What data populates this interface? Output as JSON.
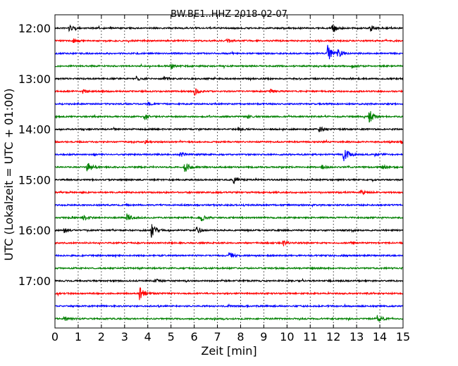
{
  "chart_data": {
    "type": "line",
    "title": "BW.BE1..HHZ 2018-02-07",
    "xlabel": "Zeit  [min]",
    "ylabel": "UTC (Lokalzeit = UTC + 01:00)",
    "xlim": [
      0,
      15
    ],
    "x_ticks": [
      0,
      1,
      2,
      3,
      4,
      5,
      6,
      7,
      8,
      9,
      10,
      11,
      12,
      13,
      14,
      15
    ],
    "y_tick_labels": [
      "12:00",
      "13:00",
      "14:00",
      "15:00",
      "16:00",
      "17:00"
    ],
    "grid": "vertical dotted",
    "trace_interval_min": 15,
    "color_cycle": [
      "#000000",
      "#ff0000",
      "#0000ff",
      "#008000"
    ],
    "series": [
      {
        "start": "12:00",
        "color": "#000000",
        "events": [
          {
            "t": 0.6,
            "a": 0.5
          },
          {
            "t": 11.95,
            "a": 0.9
          },
          {
            "t": 13.6,
            "a": 0.5
          }
        ]
      },
      {
        "start": "12:15",
        "color": "#ff0000",
        "events": [
          {
            "t": 0.8,
            "a": 0.3
          },
          {
            "t": 7.4,
            "a": 0.3
          }
        ]
      },
      {
        "start": "12:30",
        "color": "#0000ff",
        "events": [
          {
            "t": 11.75,
            "a": 1.4
          },
          {
            "t": 12.2,
            "a": 0.6
          }
        ]
      },
      {
        "start": "12:45",
        "color": "#008000",
        "events": [
          {
            "t": 5.0,
            "a": 0.5
          },
          {
            "t": 12.8,
            "a": 0.3
          }
        ]
      },
      {
        "start": "13:00",
        "color": "#000000",
        "events": [
          {
            "t": 3.5,
            "a": 0.4
          },
          {
            "t": 4.7,
            "a": 0.3
          }
        ]
      },
      {
        "start": "13:15",
        "color": "#ff0000",
        "events": [
          {
            "t": 1.2,
            "a": 0.3
          },
          {
            "t": 6.0,
            "a": 0.6
          },
          {
            "t": 9.3,
            "a": 0.3
          }
        ]
      },
      {
        "start": "13:30",
        "color": "#0000ff",
        "events": [
          {
            "t": 4.0,
            "a": 0.3
          }
        ]
      },
      {
        "start": "13:45",
        "color": "#008000",
        "events": [
          {
            "t": 3.85,
            "a": 0.5
          },
          {
            "t": 13.55,
            "a": 1.3
          },
          {
            "t": 8.3,
            "a": 0.3
          }
        ]
      },
      {
        "start": "14:00",
        "color": "#000000",
        "events": [
          {
            "t": 7.9,
            "a": 0.3
          },
          {
            "t": 11.4,
            "a": 0.5
          }
        ]
      },
      {
        "start": "14:15",
        "color": "#ff0000",
        "events": [
          {
            "t": 3.9,
            "a": 0.3
          },
          {
            "t": 14.9,
            "a": 0.4
          }
        ]
      },
      {
        "start": "14:30",
        "color": "#0000ff",
        "events": [
          {
            "t": 5.4,
            "a": 0.4
          },
          {
            "t": 12.45,
            "a": 1.3
          },
          {
            "t": 13.8,
            "a": 0.3
          }
        ]
      },
      {
        "start": "14:45",
        "color": "#008000",
        "events": [
          {
            "t": 1.4,
            "a": 1.0
          },
          {
            "t": 5.6,
            "a": 1.1
          },
          {
            "t": 11.5,
            "a": 0.4
          },
          {
            "t": 14.1,
            "a": 0.4
          }
        ]
      },
      {
        "start": "15:00",
        "color": "#000000",
        "events": [
          {
            "t": 7.7,
            "a": 0.5
          }
        ]
      },
      {
        "start": "15:15",
        "color": "#ff0000",
        "events": [
          {
            "t": 13.2,
            "a": 0.5
          }
        ]
      },
      {
        "start": "15:30",
        "color": "#0000ff",
        "events": []
      },
      {
        "start": "15:45",
        "color": "#008000",
        "events": [
          {
            "t": 1.2,
            "a": 0.5
          },
          {
            "t": 3.1,
            "a": 0.6
          },
          {
            "t": 6.3,
            "a": 0.6
          }
        ]
      },
      {
        "start": "16:00",
        "color": "#000000",
        "events": [
          {
            "t": 4.15,
            "a": 1.3
          },
          {
            "t": 6.1,
            "a": 0.7
          },
          {
            "t": 0.4,
            "a": 0.3
          }
        ]
      },
      {
        "start": "16:15",
        "color": "#ff0000",
        "events": [
          {
            "t": 9.8,
            "a": 0.4
          }
        ]
      },
      {
        "start": "16:30",
        "color": "#0000ff",
        "events": [
          {
            "t": 7.5,
            "a": 0.5
          }
        ]
      },
      {
        "start": "16:45",
        "color": "#008000",
        "events": []
      },
      {
        "start": "17:00",
        "color": "#000000",
        "events": [
          {
            "t": 4.3,
            "a": 0.3
          }
        ]
      },
      {
        "start": "17:15",
        "color": "#ff0000",
        "events": [
          {
            "t": 3.65,
            "a": 1.1
          }
        ]
      },
      {
        "start": "17:30",
        "color": "#0000ff",
        "events": []
      },
      {
        "start": "17:45",
        "color": "#008000",
        "events": [
          {
            "t": 0.4,
            "a": 0.3
          },
          {
            "t": 13.9,
            "a": 0.6
          }
        ]
      }
    ]
  }
}
